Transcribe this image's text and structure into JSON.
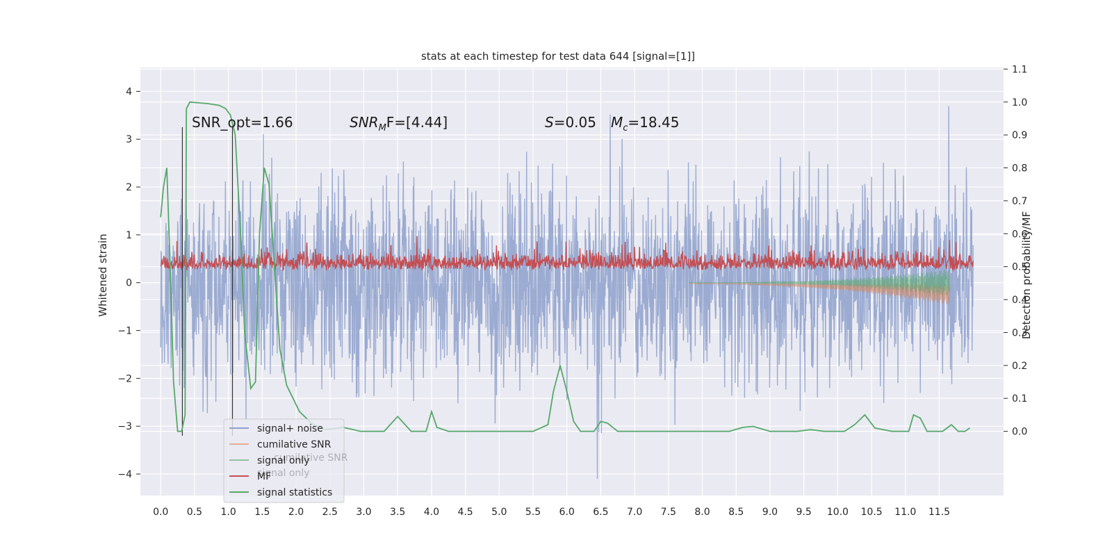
{
  "chart_data": {
    "type": "line",
    "title": "stats at each timestep for test data 644 [signal=[1]]",
    "xlabel": "",
    "ylabel": "Whitened strain",
    "y2label": "Detection probability/MF",
    "xlim": [
      -0.3,
      12.45
    ],
    "ylim": [
      -4.45,
      4.5
    ],
    "y2lim": [
      -0.195,
      1.105
    ],
    "x_ticks": [
      "0.0",
      "0.5",
      "1.0",
      "1.5",
      "2.0",
      "2.5",
      "3.0",
      "3.5",
      "4.0",
      "4.5",
      "5.0",
      "5.5",
      "6.0",
      "6.5",
      "7.0",
      "7.5",
      "8.0",
      "8.5",
      "9.0",
      "9.5",
      "10.0",
      "10.5",
      "11.0",
      "11.5"
    ],
    "y_ticks": [
      "4",
      "3",
      "2",
      "1",
      "0",
      "−1",
      "−2",
      "−3",
      "−4"
    ],
    "y2_ticks": [
      "1.1",
      "1.0",
      "0.9",
      "0.8",
      "0.7",
      "0.6",
      "0.5",
      "0.4",
      "0.3",
      "0.2",
      "0.1",
      "0.0"
    ],
    "annotations": {
      "snr_opt": "SNR_opt=1.66",
      "snr_mf_prefix": "SNR",
      "snr_mf_sub": "M",
      "snr_mf_rest": "F=[4.44]",
      "s_prefix": "S",
      "s_value": "=0.05",
      "mc_prefix": "M",
      "mc_sub": "c",
      "mc_value": "=18.45"
    },
    "vlines_x": [
      0.32,
      1.06
    ],
    "series": [
      {
        "name": "signal+ noise",
        "color": "#8da0cb",
        "x_range": [
          0.0,
          12.0
        ],
        "y_range": [
          -4.1,
          4.1
        ],
        "description": "whitened noise band, roughly |y|<2.5 with spikes to ±4"
      },
      {
        "name": "cumilative SNR",
        "color": "#dd8452",
        "x_range": [
          7.8,
          11.65
        ],
        "y_range": [
          -0.5,
          0.0
        ]
      },
      {
        "name": "signal only",
        "color": "#55a868",
        "x_range": [
          7.8,
          11.65
        ],
        "y_range": [
          -0.3,
          0.3
        ]
      },
      {
        "name": "MF",
        "color": "#c44e52",
        "x_range": [
          0.0,
          12.0
        ],
        "y_range": [
          0.0,
          1.0
        ]
      },
      {
        "name": "signal statistics",
        "color": "#55a868",
        "axis": "right",
        "points": [
          [
            0.0,
            0.65
          ],
          [
            0.04,
            0.74
          ],
          [
            0.09,
            0.8
          ],
          [
            0.14,
            0.5
          ],
          [
            0.19,
            0.15
          ],
          [
            0.25,
            0.0
          ],
          [
            0.31,
            0.0
          ],
          [
            0.36,
            0.05
          ],
          [
            0.38,
            0.98
          ],
          [
            0.43,
            1.0
          ],
          [
            0.7,
            0.995
          ],
          [
            0.86,
            0.99
          ],
          [
            0.96,
            0.98
          ],
          [
            1.03,
            0.96
          ],
          [
            1.1,
            0.9
          ],
          [
            1.18,
            0.6
          ],
          [
            1.24,
            0.3
          ],
          [
            1.33,
            0.13
          ],
          [
            1.4,
            0.15
          ],
          [
            1.46,
            0.6
          ],
          [
            1.53,
            0.8
          ],
          [
            1.6,
            0.75
          ],
          [
            1.68,
            0.5
          ],
          [
            1.76,
            0.25
          ],
          [
            1.86,
            0.14
          ],
          [
            2.05,
            0.06
          ],
          [
            2.25,
            0.02
          ],
          [
            2.45,
            0.005
          ],
          [
            2.7,
            0.012
          ],
          [
            2.95,
            0.0
          ],
          [
            3.3,
            0.0
          ],
          [
            3.5,
            0.045
          ],
          [
            3.7,
            0.0
          ],
          [
            3.92,
            0.0
          ],
          [
            4.0,
            0.06
          ],
          [
            4.08,
            0.012
          ],
          [
            4.25,
            0.0
          ],
          [
            5.0,
            0.0
          ],
          [
            5.5,
            0.0
          ],
          [
            5.72,
            0.02
          ],
          [
            5.8,
            0.12
          ],
          [
            5.9,
            0.2
          ],
          [
            6.0,
            0.12
          ],
          [
            6.1,
            0.03
          ],
          [
            6.2,
            0.0
          ],
          [
            6.4,
            0.0
          ],
          [
            6.5,
            0.03
          ],
          [
            6.6,
            0.025
          ],
          [
            6.75,
            0.0
          ],
          [
            7.5,
            0.0
          ],
          [
            8.0,
            0.0
          ],
          [
            8.4,
            0.0
          ],
          [
            8.6,
            0.012
          ],
          [
            8.75,
            0.015
          ],
          [
            9.0,
            0.0
          ],
          [
            9.4,
            0.0
          ],
          [
            9.6,
            0.005
          ],
          [
            9.8,
            0.0
          ],
          [
            10.1,
            0.0
          ],
          [
            10.25,
            0.02
          ],
          [
            10.4,
            0.05
          ],
          [
            10.55,
            0.01
          ],
          [
            10.8,
            0.0
          ],
          [
            11.05,
            0.0
          ],
          [
            11.12,
            0.05
          ],
          [
            11.22,
            0.04
          ],
          [
            11.32,
            0.0
          ],
          [
            11.55,
            0.0
          ],
          [
            11.68,
            0.02
          ],
          [
            11.78,
            0.0
          ],
          [
            11.88,
            0.0
          ],
          [
            11.95,
            0.01
          ]
        ]
      }
    ],
    "legend_position": "lower-left"
  }
}
